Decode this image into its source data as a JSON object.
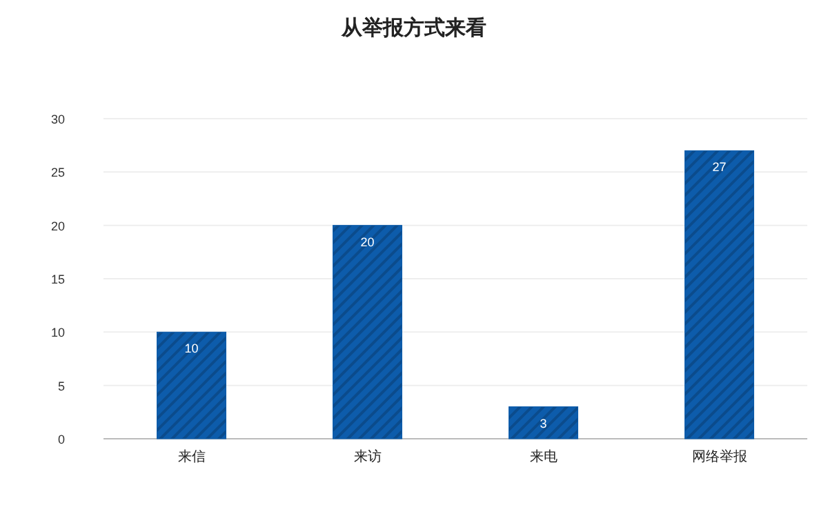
{
  "chart_data": {
    "type": "bar",
    "title": "从举报方式来看",
    "categories": [
      "来信",
      "来访",
      "来电",
      "网络举报"
    ],
    "values": [
      10,
      20,
      3,
      27
    ],
    "color": "#0d5cab",
    "ylim": [
      0,
      30
    ],
    "yticks": [
      0,
      5,
      10,
      15,
      20,
      25,
      30
    ],
    "grid": "y",
    "data_labels": true
  }
}
